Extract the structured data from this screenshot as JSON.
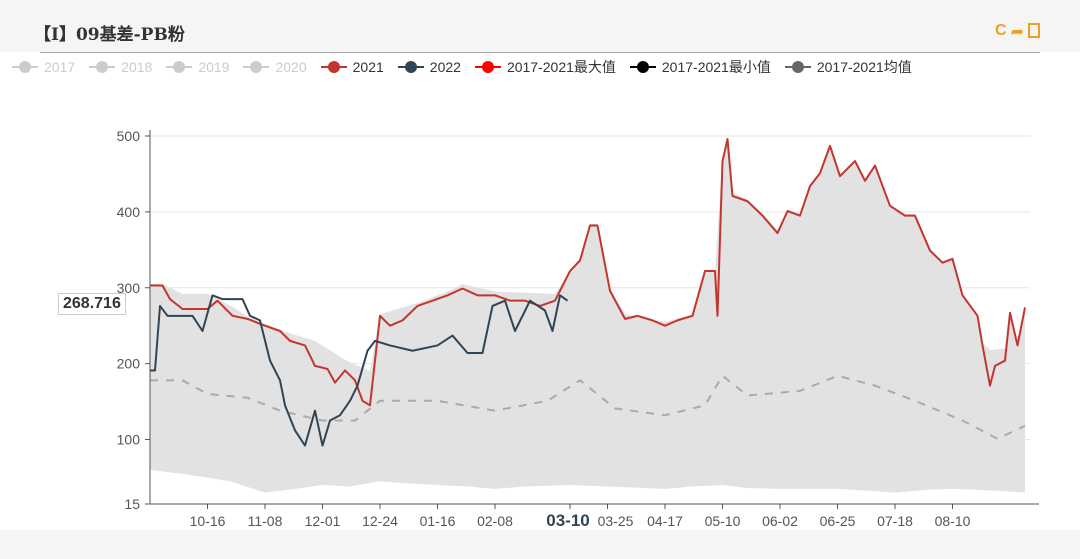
{
  "header": {
    "title": "【I】09基差-PB粉",
    "tools": [
      {
        "icon": "refresh-icon",
        "glyph": "C"
      },
      {
        "icon": "share-icon",
        "glyph": "➦"
      },
      {
        "icon": "save-image-icon",
        "glyph": "🖼"
      }
    ]
  },
  "legend": [
    {
      "label": "2017",
      "color": "#cccccc",
      "active": false
    },
    {
      "label": "2018",
      "color": "#cccccc",
      "active": false
    },
    {
      "label": "2019",
      "color": "#cccccc",
      "active": false
    },
    {
      "label": "2020",
      "color": "#cccccc",
      "active": false
    },
    {
      "label": "2021",
      "color": "#c23531",
      "active": true
    },
    {
      "label": "2022",
      "color": "#2f4554",
      "active": true
    },
    {
      "label": "2017-2021最大值",
      "color": "#ff0000",
      "active": true
    },
    {
      "label": "2017-2021最小值",
      "color": "#000000",
      "active": true
    },
    {
      "label": "2017-2021均值",
      "color": "#666666",
      "active": true
    }
  ],
  "tooltip": {
    "value": "268.716",
    "date": "03-10"
  },
  "chart_data": {
    "type": "line",
    "ylim": [
      15,
      500
    ],
    "yticks": [
      15,
      100,
      200,
      300,
      400,
      500
    ],
    "xticks": [
      "10-16",
      "11-08",
      "12-01",
      "12-24",
      "01-16",
      "02-08",
      "03-10",
      "03-25",
      "04-17",
      "05-10",
      "06-02",
      "06-25",
      "07-18",
      "08-10"
    ],
    "highlight_xtick": "03-10",
    "grid": true,
    "legend_position": "top",
    "band": {
      "upper": "2017-2021最大值",
      "lower": "2017-2021最小值",
      "fill": "#e2e2e2"
    },
    "series": [
      {
        "name": "2017-2021最小值",
        "color": "#000000",
        "style": "band",
        "points": [
          [
            "09-23",
            60
          ],
          [
            "10-05",
            55
          ],
          [
            "10-16",
            50
          ],
          [
            "10-25",
            45
          ],
          [
            "11-08",
            30
          ],
          [
            "11-20",
            35
          ],
          [
            "12-01",
            40
          ],
          [
            "12-12",
            38
          ],
          [
            "12-24",
            45
          ],
          [
            "01-05",
            42
          ],
          [
            "01-16",
            40
          ],
          [
            "01-28",
            38
          ],
          [
            "02-08",
            35
          ],
          [
            "02-20",
            38
          ],
          [
            "03-10",
            40
          ],
          [
            "03-25",
            38
          ],
          [
            "04-17",
            35
          ],
          [
            "04-28",
            38
          ],
          [
            "05-10",
            40
          ],
          [
            "05-20",
            36
          ],
          [
            "06-02",
            35
          ],
          [
            "06-25",
            35
          ],
          [
            "07-05",
            33
          ],
          [
            "07-18",
            30
          ],
          [
            "08-01",
            34
          ],
          [
            "08-10",
            35
          ],
          [
            "08-25",
            33
          ],
          [
            "09-08",
            30
          ]
        ]
      },
      {
        "name": "2017-2021最大值",
        "color": "#ff0000",
        "style": "band",
        "points": [
          [
            "09-23",
            305
          ],
          [
            "09-28",
            305
          ],
          [
            "10-06",
            292
          ],
          [
            "10-16",
            292
          ],
          [
            "10-26",
            275
          ],
          [
            "11-01",
            262
          ],
          [
            "11-08",
            252
          ],
          [
            "11-18",
            240
          ],
          [
            "11-28",
            230
          ],
          [
            "12-10",
            205
          ],
          [
            "12-20",
            190
          ],
          [
            "12-24",
            265
          ],
          [
            "01-08",
            280
          ],
          [
            "01-20",
            295
          ],
          [
            "01-26",
            305
          ],
          [
            "02-08",
            295
          ],
          [
            "03-04",
            292
          ],
          [
            "03-10",
            322
          ],
          [
            "03-14",
            336
          ],
          [
            "03-18",
            384
          ],
          [
            "03-21",
            384
          ],
          [
            "03-26",
            300
          ],
          [
            "04-01",
            265
          ],
          [
            "04-17",
            255
          ],
          [
            "04-28",
            265
          ],
          [
            "05-03",
            322
          ],
          [
            "05-07",
            322
          ],
          [
            "05-10",
            470
          ],
          [
            "05-12",
            498
          ],
          [
            "05-14",
            425
          ],
          [
            "05-20",
            416
          ],
          [
            "05-26",
            398
          ],
          [
            "06-01",
            376
          ],
          [
            "06-05",
            403
          ],
          [
            "06-10",
            398
          ],
          [
            "06-14",
            436
          ],
          [
            "06-18",
            453
          ],
          [
            "06-22",
            489
          ],
          [
            "06-26",
            450
          ],
          [
            "07-02",
            468
          ],
          [
            "07-06",
            443
          ],
          [
            "07-10",
            462
          ],
          [
            "07-16",
            410
          ],
          [
            "07-22",
            397
          ],
          [
            "07-26",
            397
          ],
          [
            "08-01",
            351
          ],
          [
            "08-06",
            335
          ],
          [
            "08-10",
            340
          ],
          [
            "08-14",
            292
          ],
          [
            "08-20",
            265
          ],
          [
            "08-22",
            228
          ],
          [
            "08-25",
            218
          ],
          [
            "08-31",
            220
          ],
          [
            "09-02",
            268
          ],
          [
            "09-05",
            228
          ],
          [
            "09-08",
            276
          ]
        ]
      },
      {
        "name": "2017-2021均值",
        "color": "#aaaaaa",
        "style": "dashed",
        "points": [
          [
            "09-23",
            178
          ],
          [
            "10-06",
            178
          ],
          [
            "10-16",
            160
          ],
          [
            "11-01",
            155
          ],
          [
            "11-14",
            138
          ],
          [
            "12-01",
            125
          ],
          [
            "12-14",
            125
          ],
          [
            "12-24",
            151
          ],
          [
            "01-16",
            151
          ],
          [
            "02-08",
            138
          ],
          [
            "03-01",
            151
          ],
          [
            "03-14",
            178
          ],
          [
            "03-28",
            141
          ],
          [
            "04-17",
            132
          ],
          [
            "05-03",
            145
          ],
          [
            "05-10",
            184
          ],
          [
            "05-20",
            158
          ],
          [
            "06-10",
            164
          ],
          [
            "06-25",
            184
          ],
          [
            "07-10",
            171
          ],
          [
            "07-26",
            151
          ],
          [
            "08-14",
            125
          ],
          [
            "08-28",
            101
          ],
          [
            "09-08",
            118
          ]
        ]
      },
      {
        "name": "2021",
        "color": "#c23531",
        "style": "solid",
        "points": [
          [
            "09-23",
            303
          ],
          [
            "09-28",
            303
          ],
          [
            "10-01",
            285
          ],
          [
            "10-06",
            272
          ],
          [
            "10-16",
            272
          ],
          [
            "10-20",
            283
          ],
          [
            "10-26",
            263
          ],
          [
            "11-01",
            259
          ],
          [
            "11-08",
            250
          ],
          [
            "11-14",
            243
          ],
          [
            "11-18",
            230
          ],
          [
            "11-24",
            224
          ],
          [
            "11-28",
            197
          ],
          [
            "12-03",
            193
          ],
          [
            "12-06",
            175
          ],
          [
            "12-10",
            191
          ],
          [
            "12-14",
            178
          ],
          [
            "12-17",
            151
          ],
          [
            "12-20",
            145
          ],
          [
            "12-24",
            263
          ],
          [
            "12-28",
            250
          ],
          [
            "01-02",
            257
          ],
          [
            "01-08",
            276
          ],
          [
            "01-14",
            283
          ],
          [
            "01-20",
            290
          ],
          [
            "01-26",
            299
          ],
          [
            "02-01",
            290
          ],
          [
            "02-08",
            290
          ],
          [
            "02-14",
            283
          ],
          [
            "02-20",
            283
          ],
          [
            "02-26",
            276
          ],
          [
            "03-04",
            283
          ],
          [
            "03-10",
            322
          ],
          [
            "03-14",
            336
          ],
          [
            "03-18",
            382
          ],
          [
            "03-21",
            382
          ],
          [
            "03-26",
            296
          ],
          [
            "04-01",
            259
          ],
          [
            "04-06",
            263
          ],
          [
            "04-12",
            257
          ],
          [
            "04-17",
            250
          ],
          [
            "04-22",
            257
          ],
          [
            "04-28",
            263
          ],
          [
            "05-03",
            322
          ],
          [
            "05-07",
            322
          ],
          [
            "05-08",
            263
          ],
          [
            "05-10",
            467
          ],
          [
            "05-12",
            496
          ],
          [
            "05-14",
            421
          ],
          [
            "05-20",
            414
          ],
          [
            "05-26",
            395
          ],
          [
            "06-01",
            372
          ],
          [
            "06-05",
            401
          ],
          [
            "06-10",
            395
          ],
          [
            "06-14",
            434
          ],
          [
            "06-18",
            451
          ],
          [
            "06-22",
            487
          ],
          [
            "06-26",
            447
          ],
          [
            "07-02",
            467
          ],
          [
            "07-06",
            441
          ],
          [
            "07-10",
            461
          ],
          [
            "07-16",
            408
          ],
          [
            "07-22",
            395
          ],
          [
            "07-26",
            395
          ],
          [
            "08-01",
            349
          ],
          [
            "08-06",
            333
          ],
          [
            "08-10",
            338
          ],
          [
            "08-14",
            290
          ],
          [
            "08-20",
            263
          ],
          [
            "08-22",
            224
          ],
          [
            "08-25",
            171
          ],
          [
            "08-27",
            197
          ],
          [
            "08-31",
            204
          ],
          [
            "09-02",
            267
          ],
          [
            "09-05",
            224
          ],
          [
            "09-08",
            274
          ]
        ]
      },
      {
        "name": "2022",
        "color": "#2f4554",
        "style": "solid",
        "points": [
          [
            "09-23",
            191
          ],
          [
            "09-25",
            191
          ],
          [
            "09-27",
            276
          ],
          [
            "09-30",
            263
          ],
          [
            "10-10",
            263
          ],
          [
            "10-14",
            243
          ],
          [
            "10-18",
            290
          ],
          [
            "10-22",
            285
          ],
          [
            "10-30",
            285
          ],
          [
            "11-02",
            263
          ],
          [
            "11-06",
            257
          ],
          [
            "11-10",
            204
          ],
          [
            "11-14",
            178
          ],
          [
            "11-16",
            145
          ],
          [
            "11-20",
            112
          ],
          [
            "11-24",
            92
          ],
          [
            "11-28",
            138
          ],
          [
            "12-01",
            92
          ],
          [
            "12-04",
            125
          ],
          [
            "12-08",
            132
          ],
          [
            "12-12",
            151
          ],
          [
            "12-15",
            171
          ],
          [
            "12-19",
            217
          ],
          [
            "12-22",
            230
          ],
          [
            "12-28",
            224
          ],
          [
            "01-06",
            217
          ],
          [
            "01-16",
            224
          ],
          [
            "01-22",
            237
          ],
          [
            "01-28",
            214
          ],
          [
            "02-03",
            214
          ],
          [
            "02-07",
            276
          ],
          [
            "02-12",
            283
          ],
          [
            "02-16",
            243
          ],
          [
            "02-22",
            283
          ],
          [
            "02-28",
            270
          ],
          [
            "03-03",
            243
          ],
          [
            "03-06",
            290
          ],
          [
            "03-09",
            283
          ]
        ]
      }
    ]
  }
}
